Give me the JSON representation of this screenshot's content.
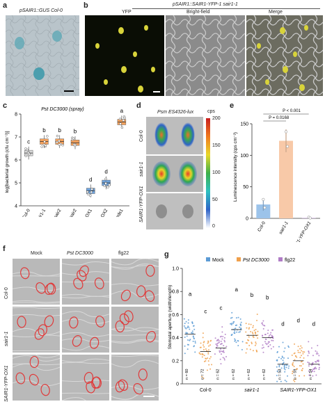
{
  "panels": {
    "a": {
      "label": "a",
      "title": "pSAIR1::GUS Col-0"
    },
    "b": {
      "label": "b",
      "title": "pSAIR1::SAIR1-YFP-1 sair1-1",
      "subpanels": [
        "YFP",
        "Bright-field",
        "Merge"
      ]
    },
    "c": {
      "label": "c",
      "title": "Pst DC3000 (spray)"
    },
    "d": {
      "label": "d",
      "title": "Psm ES4326-lux",
      "rows": [
        "Col-0",
        "sair1-1",
        "SAIR1-YFP-OX1"
      ],
      "colorbar_label": "cps",
      "colorbar_ticks": [
        "200",
        "150",
        "100",
        "50",
        "0"
      ]
    },
    "e": {
      "label": "e"
    },
    "f": {
      "label": "f",
      "columns": [
        "Mock",
        "Pst DC3000",
        "flg22"
      ],
      "rows": [
        "Col-0",
        "sair1-1",
        "SAIR1-YFP-OX1"
      ]
    },
    "g": {
      "label": "g"
    }
  },
  "chart_data": [
    {
      "type": "box",
      "panel": "c",
      "title": "Pst DC3000 (spray)",
      "ylabel": "log[bacterial growth (cfu cm⁻²)]",
      "ylim": [
        4,
        8
      ],
      "yticks": [
        "4",
        "5",
        "6",
        "7",
        "8"
      ],
      "categories": [
        "Col-0",
        "sair1-1",
        "sair2",
        "sair1 sair2",
        "OX1",
        "OX2",
        "eds1"
      ],
      "group_label": "SAIR1-YFP",
      "medians": [
        6.3,
        6.8,
        6.8,
        6.75,
        4.65,
        5.0,
        7.65
      ],
      "letters": [
        "c",
        "b",
        "b",
        "b",
        "d",
        "d",
        "a"
      ],
      "colors": [
        "#d9d9d9",
        "#f5a25d",
        "#f5a25d",
        "#f5a25d",
        "#6fa3dc",
        "#6fa3dc",
        "#f5a25d"
      ]
    },
    {
      "type": "bar",
      "panel": "e",
      "ylabel": "Luminescence intensity (cps cm⁻²)",
      "ylim": [
        0,
        150
      ],
      "yticks": [
        "0",
        "50",
        "100",
        "150"
      ],
      "categories": [
        "Col-0",
        "sair1-1",
        "SAIR1-YFP-OX1"
      ],
      "values": [
        22,
        123,
        1
      ],
      "colors": [
        "#9cc3ea",
        "#f8c9a8",
        "#d9c3e6"
      ],
      "pvalues": [
        "P < 0.001",
        "P = 0.0168"
      ]
    },
    {
      "type": "scatter",
      "panel": "g",
      "ylabel": "Stomatal aperture (width/length)",
      "ylim": [
        0,
        1
      ],
      "yticks": [
        "0",
        "0.2",
        "0.4",
        "0.6",
        "0.8",
        "1.0"
      ],
      "categories": [
        "Col-0",
        "sair1-1",
        "SAIR1-YFP-OX1"
      ],
      "series": [
        {
          "name": "Mock",
          "color": "#5b9bd5",
          "means": [
            0.43,
            0.47,
            0.17
          ],
          "letters": [
            "a",
            "a",
            "d"
          ],
          "n": [
            "n = 60",
            "n = 62",
            "n = 53"
          ]
        },
        {
          "name": "Pst DC3000",
          "color": "#f0a04b",
          "means": [
            0.28,
            0.42,
            0.2
          ],
          "letters": [
            "c",
            "b",
            "d"
          ],
          "n": [
            "n = 72",
            "n = 62",
            "n = 59"
          ]
        },
        {
          "name": "flg22",
          "color": "#b07cc6",
          "means": [
            0.31,
            0.4,
            0.17
          ],
          "letters": [
            "c",
            "b",
            "d"
          ],
          "n": [
            "n = 62",
            "n = 62",
            "n = 54"
          ]
        }
      ]
    }
  ]
}
